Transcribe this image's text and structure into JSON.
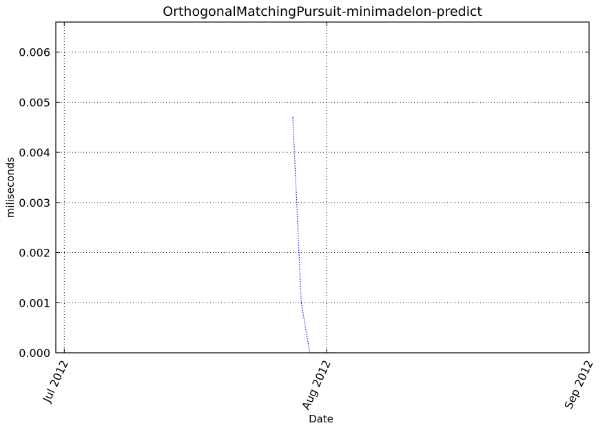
{
  "chart_data": {
    "type": "line",
    "title": "OrthogonalMatchingPursuit-minimadelon-predict",
    "xlabel": "Date",
    "ylabel": "miliseconds",
    "xlim": [
      "2012-06-30",
      "2012-09-01"
    ],
    "ylim": [
      0,
      0.0066
    ],
    "x_ticks": [
      {
        "value": "2012-07-01",
        "label": "Jul 2012"
      },
      {
        "value": "2012-08-01",
        "label": "Aug 2012"
      },
      {
        "value": "2012-09-01",
        "label": "Sep 2012"
      }
    ],
    "y_ticks": [
      {
        "value": 0.0,
        "label": "0.000"
      },
      {
        "value": 0.001,
        "label": "0.001"
      },
      {
        "value": 0.002,
        "label": "0.002"
      },
      {
        "value": 0.003,
        "label": "0.003"
      },
      {
        "value": 0.004,
        "label": "0.004"
      },
      {
        "value": 0.005,
        "label": "0.005"
      },
      {
        "value": 0.006,
        "label": "0.006"
      }
    ],
    "grid": true,
    "line_style": "dotted",
    "color": "#0000ff",
    "series": [
      {
        "x": [
          "2012-07-28",
          "2012-07-29",
          "2012-07-30",
          "2012-07-31",
          "2012-08-01",
          "2012-08-02"
        ],
        "y": [
          0.0047,
          0.001,
          0.0,
          0.0,
          0.0,
          0.0
        ]
      }
    ]
  }
}
